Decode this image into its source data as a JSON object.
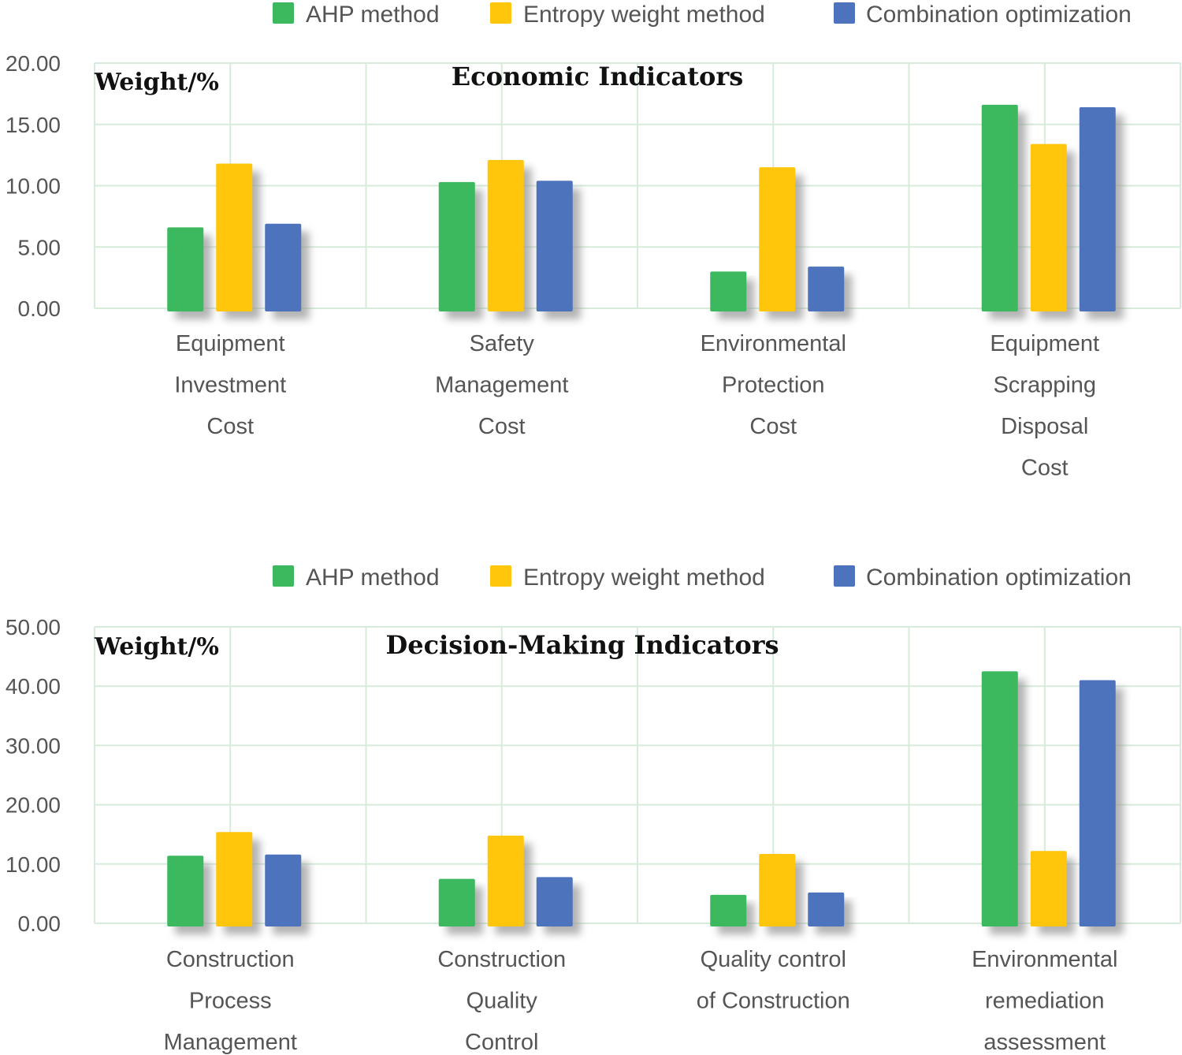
{
  "colors": {
    "ahp": "#3cb95e",
    "entropy": "#ffc60b",
    "combination": "#4e73bd",
    "grid": "#d6ebd9",
    "shadow": "#9a9a9a"
  },
  "chart_data": [
    {
      "type": "bar",
      "title": "Economic Indicators",
      "ylabel": "Weight/%",
      "ylim": [
        0,
        20
      ],
      "yticks": [
        "0.00",
        "5.00",
        "10.00",
        "15.00",
        "20.00"
      ],
      "grid": true,
      "legend_placement": "top",
      "categories": [
        [
          "Equipment",
          "Investment",
          "Cost"
        ],
        [
          "Safety",
          "Management",
          "Cost"
        ],
        [
          "Environmental",
          "Protection",
          "Cost"
        ],
        [
          "Equipment",
          "Scrapping",
          "Disposal",
          "Cost"
        ]
      ],
      "series": [
        {
          "name": "AHP method",
          "values": [
            6.6,
            10.3,
            3.0,
            16.6
          ]
        },
        {
          "name": "Entropy weight method",
          "values": [
            11.8,
            12.1,
            11.5,
            13.4
          ]
        },
        {
          "name": "Combination optimization",
          "values": [
            6.9,
            10.4,
            3.4,
            16.4
          ]
        }
      ]
    },
    {
      "type": "bar",
      "title": "Decision-Making Indicators",
      "ylabel": "Weight/%",
      "ylim": [
        0,
        50
      ],
      "yticks": [
        "0.00",
        "10.00",
        "20.00",
        "30.00",
        "40.00",
        "50.00"
      ],
      "grid": true,
      "legend_placement": "top",
      "categories": [
        [
          "Construction",
          "Process",
          "Management"
        ],
        [
          "Construction",
          "Quality",
          "Control"
        ],
        [
          "Quality control",
          "of Construction"
        ],
        [
          "Environmental",
          "remediation",
          "assessment"
        ]
      ],
      "series": [
        {
          "name": "AHP method",
          "values": [
            11.4,
            7.5,
            4.8,
            42.5
          ]
        },
        {
          "name": "Entropy weight method",
          "values": [
            15.4,
            14.8,
            11.7,
            12.2
          ]
        },
        {
          "name": "Combination optimization",
          "values": [
            11.6,
            7.8,
            5.2,
            41.0
          ]
        }
      ]
    }
  ]
}
